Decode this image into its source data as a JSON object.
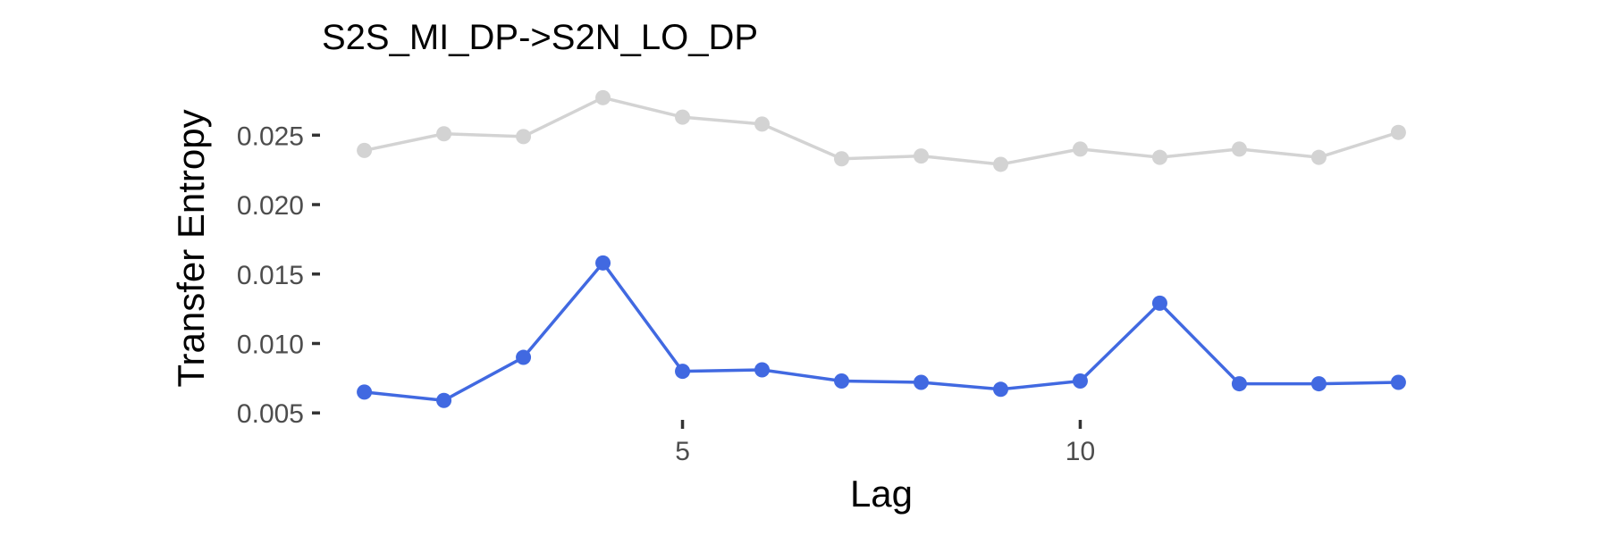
{
  "chart_data": {
    "type": "line",
    "title": "S2S_MI_DP->S2N_LO_DP",
    "xlabel": "Lag",
    "ylabel": "Transfer Entropy",
    "xlim": [
      0.6,
      14.4
    ],
    "ylim": [
      0.0045,
      0.0283
    ],
    "x_ticks": [
      5,
      10
    ],
    "y_ticks": [
      0.005,
      0.01,
      0.015,
      0.02,
      0.025
    ],
    "y_tick_labels": [
      "0.005",
      "0.010",
      "0.015",
      "0.020",
      "0.025"
    ],
    "grid": false,
    "legend": "none",
    "x": [
      1,
      2,
      3,
      4,
      5,
      6,
      7,
      8,
      9,
      10,
      11,
      12,
      13,
      14
    ],
    "series": [
      {
        "color": "#d3d3d3",
        "values": [
          0.0239,
          0.0251,
          0.0249,
          0.0277,
          0.0263,
          0.0258,
          0.0233,
          0.0235,
          0.0229,
          0.024,
          0.0234,
          0.024,
          0.0234,
          0.0252
        ]
      },
      {
        "color": "#4169e1",
        "values": [
          0.0065,
          0.0059,
          0.009,
          0.0158,
          0.008,
          0.0081,
          0.0073,
          0.0072,
          0.0067,
          0.0073,
          0.0129,
          0.0071,
          0.0071,
          0.0072
        ]
      }
    ]
  }
}
